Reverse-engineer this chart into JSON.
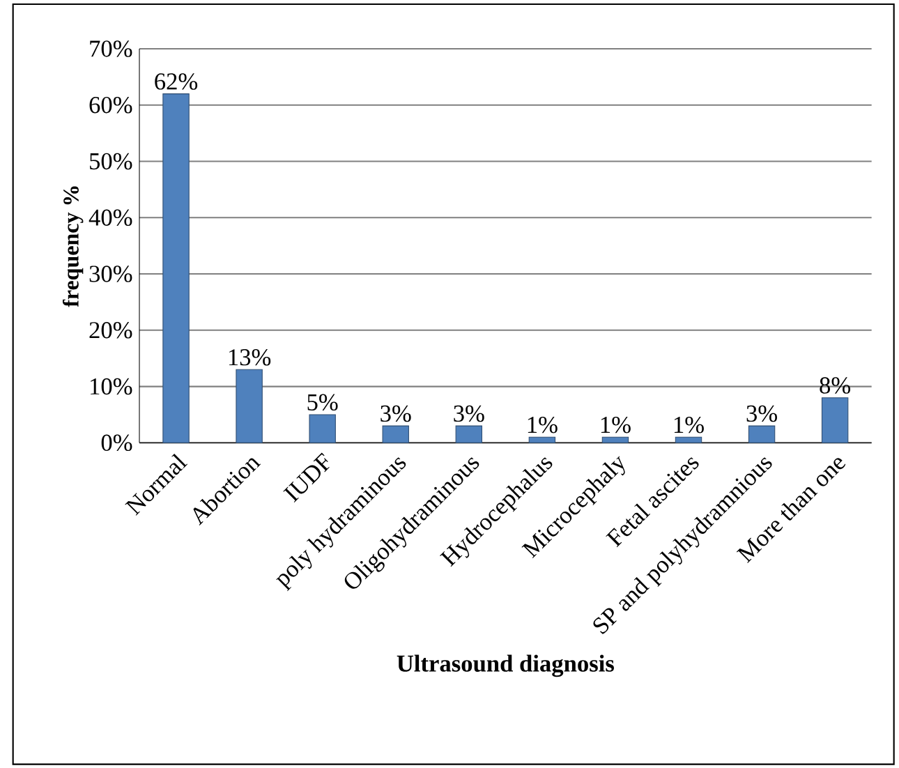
{
  "chart_data": {
    "type": "bar",
    "xlabel": "Ultrasound diagnosis",
    "ylabel": "frequency %",
    "categories": [
      "Normal",
      "Abortion",
      "IUDF",
      "poly hydraminous",
      "Oligohydraminous",
      "Hydrocephalus",
      "Microcephaly",
      "Fetal ascites",
      "SP and polyhydramnious",
      "More than one"
    ],
    "values": [
      62,
      13,
      5,
      3,
      3,
      1,
      1,
      1,
      3,
      8
    ],
    "value_labels": [
      "62%",
      "13%",
      "5%",
      "3%",
      "3%",
      "1%",
      "1%",
      "1%",
      "3%",
      "8%"
    ],
    "color": "#4f81bd",
    "ylim": [
      0,
      70
    ],
    "yticks": [
      {
        "value": 0,
        "label": "0%"
      },
      {
        "value": 10,
        "label": "10%"
      },
      {
        "value": 20,
        "label": "20%"
      },
      {
        "value": 30,
        "label": "30%"
      },
      {
        "value": 40,
        "label": "40%"
      },
      {
        "value": 50,
        "label": "50%"
      },
      {
        "value": 60,
        "label": "60%"
      },
      {
        "value": 70,
        "label": "70%"
      }
    ],
    "grid": "y"
  }
}
